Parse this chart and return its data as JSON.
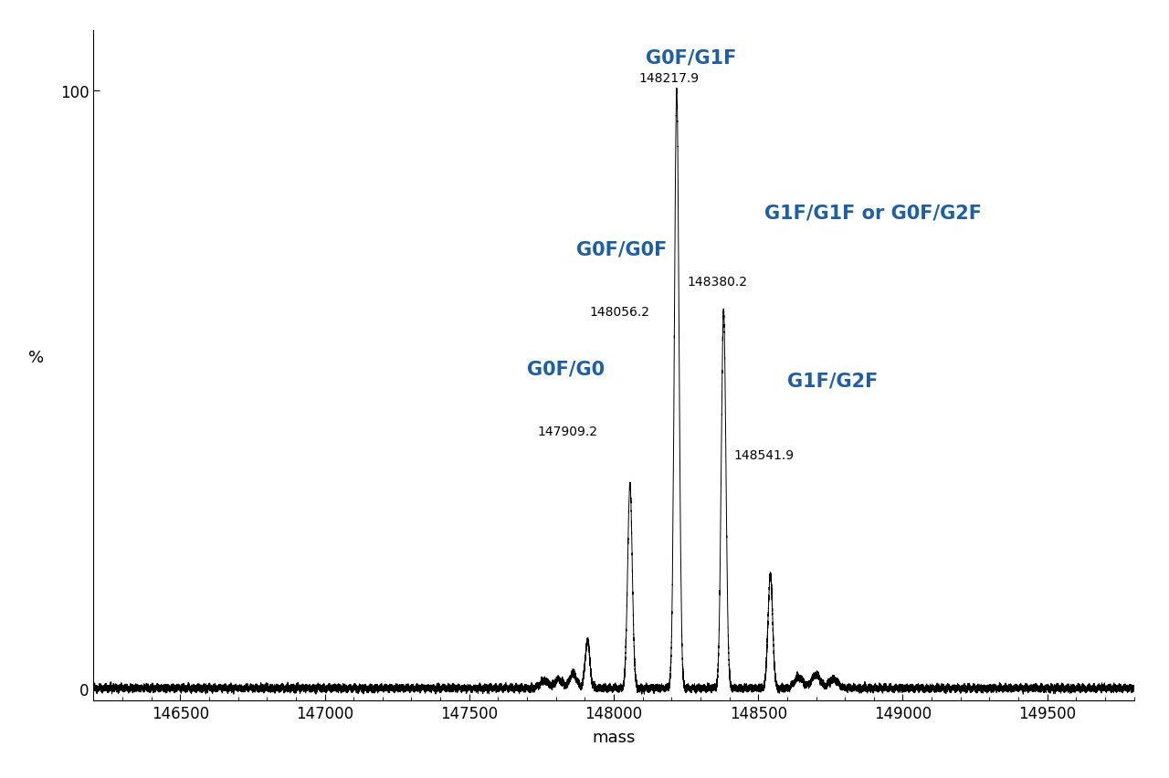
{
  "xlim": [
    146200,
    149800
  ],
  "ylim": [
    -2,
    110
  ],
  "xticks": [
    146500,
    147000,
    147500,
    148000,
    148500,
    149000,
    149500
  ],
  "yticks": [
    0,
    100
  ],
  "xlabel": "mass",
  "ylabel": "%",
  "main_peaks": [
    {
      "mass": 147909.2,
      "height": 8.0,
      "sigma": 8
    },
    {
      "mass": 148056.2,
      "height": 34.0,
      "sigma": 8
    },
    {
      "mass": 148217.9,
      "height": 100.0,
      "sigma": 8
    },
    {
      "mass": 148380.2,
      "height": 63.0,
      "sigma": 8
    },
    {
      "mass": 148541.9,
      "height": 19.0,
      "sigma": 8
    }
  ],
  "satellite_peaks": [
    {
      "mass": 147760,
      "height": 1.2,
      "sigma": 15
    },
    {
      "mass": 147810,
      "height": 1.5,
      "sigma": 12
    },
    {
      "mass": 147860,
      "height": 2.5,
      "sigma": 12
    },
    {
      "mass": 148640,
      "height": 1.8,
      "sigma": 15
    },
    {
      "mass": 148700,
      "height": 2.2,
      "sigma": 15
    },
    {
      "mass": 148760,
      "height": 1.5,
      "sigma": 15
    }
  ],
  "noise_std": 0.25,
  "wiggle_amp": 0.15,
  "wiggle_freq": 400,
  "background_color": "#ffffff",
  "line_color": "#000000",
  "label_color": "#1a5fa8",
  "mass_label_color": "#000000",
  "labels": [
    {
      "blue": "G0F/G0",
      "mass": "147909.2",
      "blue_x": 147700,
      "blue_y": 52,
      "mass_x": 147840,
      "mass_y": 42
    },
    {
      "blue": "G0F/G0F",
      "mass": "148056.2",
      "blue_x": 147870,
      "blue_y": 72,
      "mass_x": 148020,
      "mass_y": 62
    },
    {
      "blue": "G0F/G1F",
      "mass": "148217.9",
      "blue_x": 148110,
      "blue_y": 104,
      "mass_x": 148190,
      "mass_y": 101
    },
    {
      "blue": "G1F/G1F or G0F/G2F",
      "mass": "148380.2",
      "blue_x": 148520,
      "blue_y": 78,
      "mass_x": 148360,
      "mass_y": 67
    },
    {
      "blue": "G1F/G2F",
      "mass": "148541.9",
      "blue_x": 148600,
      "blue_y": 50,
      "mass_x": 148520,
      "mass_y": 38
    }
  ]
}
